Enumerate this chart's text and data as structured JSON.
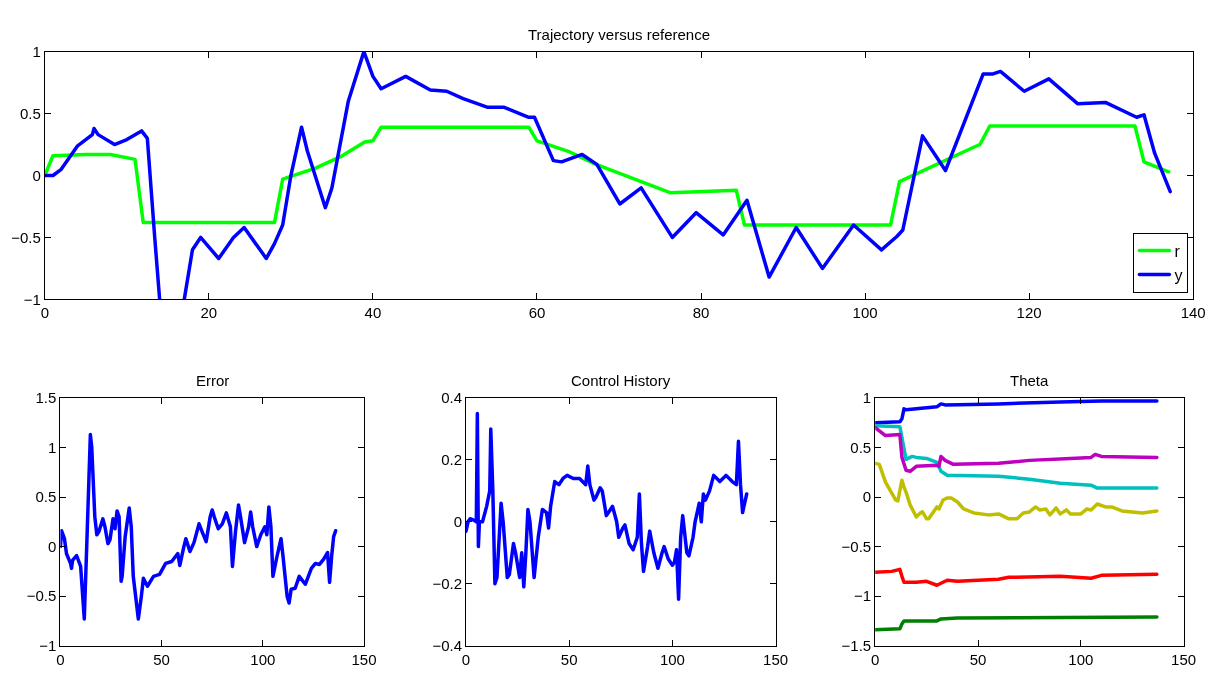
{
  "chart_data": [
    {
      "type": "line",
      "title": "Trajectory versus reference",
      "xlim": [
        0,
        140
      ],
      "xticks": [
        0,
        20,
        40,
        60,
        80,
        100,
        120,
        140
      ],
      "ylim": [
        -1,
        1
      ],
      "yticks": [
        -1,
        -0.5,
        0,
        0.5,
        1
      ],
      "legend": "bottom right",
      "series": [
        {
          "name": "r",
          "color": "#00ff00",
          "x": [
            0,
            1,
            5,
            8,
            11,
            12,
            28,
            29,
            33,
            36,
            39,
            40,
            41,
            59,
            60,
            64,
            67.2,
            76.3,
            84.3,
            85.3,
            103.1,
            104.2,
            113.3,
            114,
            115.2,
            132.9,
            134,
            137
          ],
          "values": [
            0,
            0.16,
            0.17,
            0.17,
            0.13,
            -0.38,
            -0.38,
            -0.03,
            0.06,
            0.15,
            0.27,
            0.28,
            0.39,
            0.39,
            0.28,
            0.19,
            0.09,
            -0.14,
            -0.12,
            -0.4,
            -0.4,
            -0.05,
            0.23,
            0.25,
            0.4,
            0.4,
            0.11,
            0.03
          ]
        },
        {
          "name": "y",
          "color": "#0000ff",
          "x": [
            0,
            1,
            2,
            4,
            5.8,
            6,
            6.5,
            8.5,
            10,
            11.8,
            12.5,
            13.4,
            14,
            15.5,
            17,
            18,
            19,
            21.2,
            23,
            24.3,
            27,
            28,
            29,
            30,
            31.3,
            32,
            34.2,
            35,
            37,
            38.9,
            40,
            41,
            44,
            47,
            49,
            51,
            54,
            56,
            59,
            59.7,
            62,
            63,
            65.5,
            67.3,
            70.1,
            72.7,
            76.5,
            79.4,
            82.7,
            85.6,
            88.3,
            91.6,
            94.8,
            98.6,
            102,
            103.9,
            104.6,
            107,
            109.8,
            114.4,
            115.6,
            116.5,
            119.4,
            122.4,
            125.9,
            129.3,
            133.1,
            134,
            135.3,
            137.2
          ],
          "values": [
            0,
            0,
            0.05,
            0.24,
            0.33,
            0.38,
            0.33,
            0.25,
            0.29,
            0.36,
            0.3,
            -0.5,
            -1,
            null,
            -1,
            -0.6,
            -0.5,
            -0.67,
            -0.5,
            -0.42,
            -0.67,
            -0.55,
            -0.4,
            0,
            0.39,
            0.2,
            -0.26,
            -0.1,
            0.6,
            1,
            0.8,
            0.7,
            0.8,
            0.69,
            0.68,
            0.62,
            0.55,
            0.55,
            0.47,
            0.47,
            0.12,
            0.11,
            0.17,
            0.09,
            -0.23,
            -0.1,
            -0.5,
            -0.3,
            -0.48,
            -0.2,
            -0.82,
            -0.42,
            -0.75,
            -0.4,
            -0.6,
            -0.49,
            -0.44,
            0.32,
            0.04,
            0.82,
            0.82,
            0.84,
            0.68,
            0.78,
            0.58,
            0.59,
            0.47,
            0.49,
            0.18,
            -0.13
          ]
        }
      ]
    },
    {
      "type": "line",
      "title": "Error",
      "xlim": [
        0,
        150
      ],
      "xticks": [
        0,
        50,
        100,
        150
      ],
      "ylim": [
        -1,
        1.5
      ],
      "yticks": [
        -1,
        -0.5,
        0,
        0.5,
        1,
        1.5
      ],
      "legend": false,
      "series": [
        {
          "color": "#0000ff",
          "x": [
            0,
            0.6,
            2,
            3,
            5,
            5.5,
            6,
            8,
            10,
            11.8,
            13,
            14.8,
            15.5,
            17,
            18,
            19,
            21,
            22,
            23.5,
            24.5,
            26,
            27,
            28,
            29,
            30,
            30.5,
            32,
            34,
            35,
            36,
            38.5,
            40,
            41,
            43,
            46,
            49,
            52,
            55,
            58,
            59,
            61,
            62,
            64,
            66,
            68.5,
            70,
            72,
            74,
            75,
            76,
            78,
            80,
            82,
            84,
            85,
            86.5,
            88,
            89,
            91,
            93,
            94,
            95,
            97,
            99,
            101,
            102,
            103,
            104,
            105,
            107,
            109,
            110,
            112,
            113,
            114,
            116,
            118,
            121,
            124,
            126,
            128,
            130,
            132,
            133,
            134,
            135,
            136
          ],
          "values": [
            0,
            0.16,
            0.08,
            -0.07,
            -0.17,
            -0.22,
            -0.14,
            -0.09,
            -0.2,
            -0.73,
            0,
            1.13,
            1,
            0.3,
            0.12,
            0.15,
            0.28,
            0.2,
            0.03,
            0.07,
            0.28,
            0.18,
            0.36,
            0.3,
            -0.35,
            -0.3,
            0.1,
            0.39,
            0.2,
            -0.3,
            -0.73,
            -0.5,
            -0.32,
            -0.4,
            -0.3,
            -0.28,
            -0.17,
            -0.15,
            -0.07,
            -0.19,
            0,
            0.08,
            -0.05,
            0.04,
            0.23,
            0.15,
            0.05,
            0.3,
            0.37,
            0.3,
            0.18,
            0.23,
            0.34,
            0.2,
            -0.2,
            0.15,
            0.42,
            0.3,
            0.04,
            0.2,
            0.35,
            0.2,
            0,
            0.12,
            0.2,
            0.12,
            0.4,
            0.2,
            -0.3,
            -0.1,
            0.08,
            -0.1,
            -0.5,
            -0.57,
            -0.43,
            -0.42,
            -0.3,
            -0.38,
            -0.22,
            -0.17,
            -0.18,
            -0.13,
            -0.06,
            -0.36,
            -0.1,
            0.1,
            0.16
          ]
        }
      ]
    },
    {
      "type": "line",
      "title": "Control History",
      "xlim": [
        0,
        150
      ],
      "xticks": [
        0,
        50,
        100,
        150
      ],
      "ylim": [
        -0.4,
        0.4
      ],
      "yticks": [
        -0.4,
        -0.2,
        0,
        0.2,
        0.4
      ],
      "legend": false,
      "series": [
        {
          "color": "#0000ff",
          "x": [
            0,
            1,
            2,
            4,
            5,
            5.5,
            6,
            6.5,
            8,
            10,
            11.5,
            12,
            13,
            14,
            15,
            17,
            18,
            20,
            21,
            23,
            24,
            26,
            27,
            28,
            29,
            30,
            31,
            33,
            35,
            37,
            39,
            40,
            41,
            43,
            45,
            47,
            49,
            52,
            55,
            58,
            59,
            60,
            62,
            63,
            65,
            66,
            68,
            70,
            71,
            73,
            74,
            76,
            77,
            79,
            81,
            83,
            84,
            85,
            86,
            88,
            89,
            91,
            93,
            95,
            96,
            98,
            100,
            101,
            102,
            103,
            104,
            105,
            107,
            108,
            110,
            111,
            113,
            114,
            115,
            116,
            118,
            120,
            123,
            126,
            129,
            131,
            132,
            133,
            134,
            136
          ],
          "values": [
            -0.03,
            0,
            0.01,
            0.005,
            0,
            0.35,
            -0.08,
            0,
            0,
            0.05,
            0.1,
            0.3,
            0.1,
            -0.2,
            -0.18,
            0.06,
            0,
            -0.18,
            -0.17,
            -0.07,
            -0.1,
            -0.18,
            -0.1,
            -0.21,
            -0.1,
            0.04,
            0,
            -0.18,
            -0.05,
            0.04,
            0.03,
            -0.02,
            0.05,
            0.13,
            0.12,
            0.14,
            0.15,
            0.14,
            0.14,
            0.12,
            0.18,
            0.12,
            0.07,
            0.08,
            0.11,
            0.1,
            0.02,
            0.04,
            0.05,
            0,
            -0.05,
            -0.02,
            -0.01,
            -0.07,
            -0.09,
            -0.05,
            0.09,
            -0.07,
            -0.16,
            -0.08,
            -0.03,
            -0.1,
            -0.15,
            -0.1,
            -0.08,
            -0.12,
            -0.14,
            -0.13,
            -0.09,
            -0.25,
            -0.05,
            0.02,
            -0.1,
            -0.11,
            -0.05,
            0,
            0.06,
            0,
            0.09,
            0.07,
            0.1,
            0.15,
            0.13,
            0.15,
            0.13,
            0.12,
            0.26,
            0.12,
            0.03,
            0.09
          ]
        }
      ]
    },
    {
      "type": "line",
      "title": "Theta",
      "xlim": [
        0,
        150
      ],
      "xticks": [
        0,
        50,
        100,
        150
      ],
      "ylim": [
        -1.5,
        1
      ],
      "yticks": [
        -1.5,
        -1,
        -0.5,
        0,
        0.5,
        1
      ],
      "legend": false,
      "series": [
        {
          "color": "#0000ff",
          "x": [
            0,
            12,
            13,
            14,
            15,
            25,
            30,
            32,
            34,
            60,
            90,
            110,
            137
          ],
          "values": [
            0.75,
            0.76,
            0.79,
            0.89,
            0.88,
            0.9,
            0.91,
            0.94,
            0.93,
            0.94,
            0.96,
            0.97,
            0.97
          ]
        },
        {
          "color": "#00bfbf",
          "x": [
            0,
            12,
            13,
            15,
            18,
            20,
            25,
            30,
            32,
            35,
            60,
            75,
            90,
            105,
            108,
            137
          ],
          "values": [
            0.72,
            0.71,
            0.6,
            0.38,
            0.41,
            0.4,
            0.39,
            0.35,
            0.26,
            0.22,
            0.21,
            0.18,
            0.14,
            0.12,
            0.09,
            0.09
          ]
        },
        {
          "color": "#bf00bf",
          "x": [
            0,
            5,
            12,
            13,
            15,
            17,
            20,
            30,
            31,
            32,
            34,
            36,
            38,
            60,
            75,
            95,
            105,
            107,
            110,
            137
          ],
          "values": [
            0.7,
            0.62,
            0.63,
            0.4,
            0.27,
            0.26,
            0.31,
            0.32,
            0.31,
            0.41,
            0.37,
            0.35,
            0.33,
            0.34,
            0.37,
            0.39,
            0.4,
            0.43,
            0.41,
            0.4
          ]
        },
        {
          "color": "#bfbf00",
          "x": [
            0,
            2,
            5,
            10,
            11,
            13,
            14,
            15,
            17,
            20,
            22,
            23,
            25,
            26,
            30,
            31,
            33,
            35,
            37,
            40,
            43,
            48,
            55,
            60,
            65,
            69,
            72,
            75,
            78,
            80,
            83,
            85,
            88,
            90,
            93,
            95,
            100,
            103,
            105,
            108,
            112,
            115,
            120,
            125,
            130,
            137
          ],
          "values": [
            0.34,
            0.33,
            0.15,
            -0.03,
            -0.04,
            0.17,
            0.1,
            0.05,
            -0.08,
            -0.2,
            -0.16,
            -0.15,
            -0.22,
            -0.22,
            -0.1,
            -0.12,
            -0.03,
            -0.01,
            -0.01,
            -0.05,
            -0.12,
            -0.16,
            -0.18,
            -0.17,
            -0.22,
            -0.22,
            -0.16,
            -0.15,
            -0.1,
            -0.13,
            -0.12,
            -0.18,
            -0.11,
            -0.17,
            -0.13,
            -0.17,
            -0.17,
            -0.12,
            -0.13,
            -0.07,
            -0.1,
            -0.1,
            -0.14,
            -0.15,
            -0.16,
            -0.14
          ]
        },
        {
          "color": "#ff0000",
          "x": [
            0,
            8,
            12,
            13,
            14,
            20,
            25,
            30,
            33,
            35,
            40,
            60,
            65,
            90,
            105,
            110,
            137
          ],
          "values": [
            -0.76,
            -0.75,
            -0.73,
            -0.8,
            -0.86,
            -0.86,
            -0.85,
            -0.89,
            -0.86,
            -0.84,
            -0.85,
            -0.83,
            -0.81,
            -0.8,
            -0.82,
            -0.79,
            -0.78
          ]
        },
        {
          "color": "#008000",
          "x": [
            0,
            12,
            13,
            14,
            30,
            32,
            40,
            137
          ],
          "values": [
            -1.34,
            -1.33,
            -1.28,
            -1.25,
            -1.25,
            -1.23,
            -1.22,
            -1.21
          ]
        }
      ]
    }
  ]
}
